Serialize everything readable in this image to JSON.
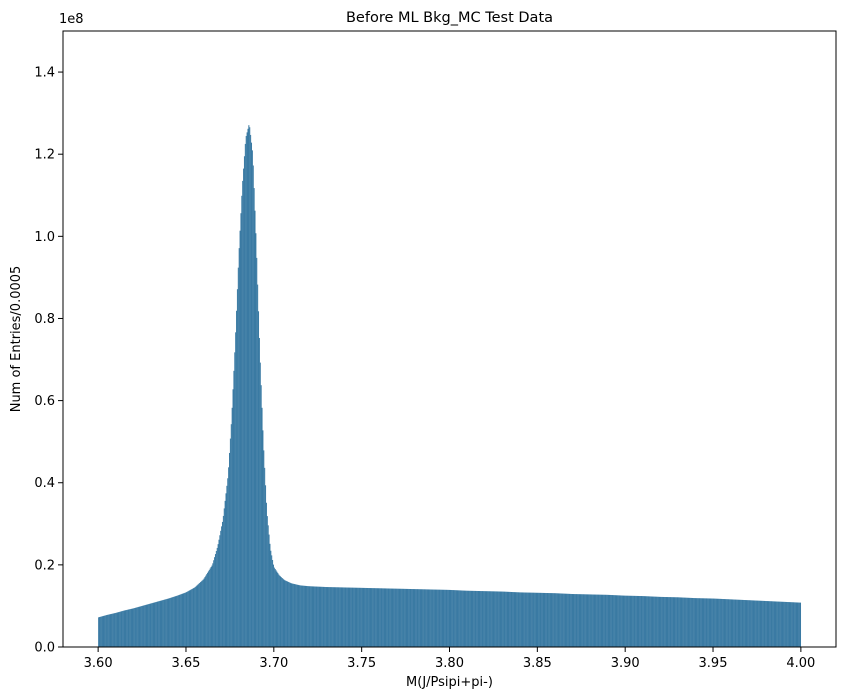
{
  "chart_data": {
    "type": "bar",
    "title": "Before ML Bkg_MC Test Data",
    "xlabel": "M(J/Psipi+pi-)",
    "ylabel": "Num of Entries/0.0005",
    "y_offset_label": "1e8",
    "y_scale": 100000000,
    "xlim": [
      3.58,
      4.02
    ],
    "ylim": [
      0,
      1.5
    ],
    "x_ticks": [
      3.6,
      3.65,
      3.7,
      3.75,
      3.8,
      3.85,
      3.9,
      3.95,
      4.0
    ],
    "x_tick_labels": [
      "3.60",
      "3.65",
      "3.70",
      "3.75",
      "3.80",
      "3.85",
      "3.90",
      "3.95",
      "4.00"
    ],
    "y_ticks": [
      0.0,
      0.2,
      0.4,
      0.6,
      0.8,
      1.0,
      1.2,
      1.4
    ],
    "y_tick_labels": [
      "0.0",
      "0.2",
      "0.4",
      "0.6",
      "0.8",
      "1.0",
      "1.2",
      "1.4"
    ],
    "bin_width": 0.0005,
    "grid": false,
    "series": [
      {
        "color": "#3a7aa3",
        "x": [
          3.6,
          3.605,
          3.61,
          3.615,
          3.62,
          3.625,
          3.63,
          3.635,
          3.64,
          3.645,
          3.65,
          3.655,
          3.66,
          3.665,
          3.668,
          3.671,
          3.674,
          3.676,
          3.678,
          3.68,
          3.682,
          3.684,
          3.686,
          3.688,
          3.69,
          3.692,
          3.694,
          3.696,
          3.698,
          3.7,
          3.703,
          3.706,
          3.71,
          3.715,
          3.72,
          3.73,
          3.74,
          3.75,
          3.76,
          3.77,
          3.78,
          3.79,
          3.8,
          3.81,
          3.82,
          3.83,
          3.84,
          3.85,
          3.86,
          3.87,
          3.88,
          3.89,
          3.9,
          3.91,
          3.92,
          3.93,
          3.94,
          3.95,
          3.96,
          3.97,
          3.98,
          3.99,
          4.0
        ],
        "values": [
          0.072,
          0.078,
          0.083,
          0.089,
          0.094,
          0.1,
          0.106,
          0.112,
          0.118,
          0.125,
          0.133,
          0.145,
          0.165,
          0.2,
          0.245,
          0.31,
          0.42,
          0.56,
          0.74,
          0.95,
          1.12,
          1.24,
          1.275,
          1.2,
          0.98,
          0.72,
          0.5,
          0.33,
          0.24,
          0.195,
          0.175,
          0.163,
          0.155,
          0.15,
          0.148,
          0.146,
          0.145,
          0.144,
          0.143,
          0.142,
          0.141,
          0.14,
          0.139,
          0.137,
          0.136,
          0.135,
          0.133,
          0.132,
          0.131,
          0.129,
          0.128,
          0.127,
          0.125,
          0.124,
          0.122,
          0.121,
          0.119,
          0.118,
          0.116,
          0.114,
          0.112,
          0.11,
          0.108
        ]
      }
    ]
  }
}
